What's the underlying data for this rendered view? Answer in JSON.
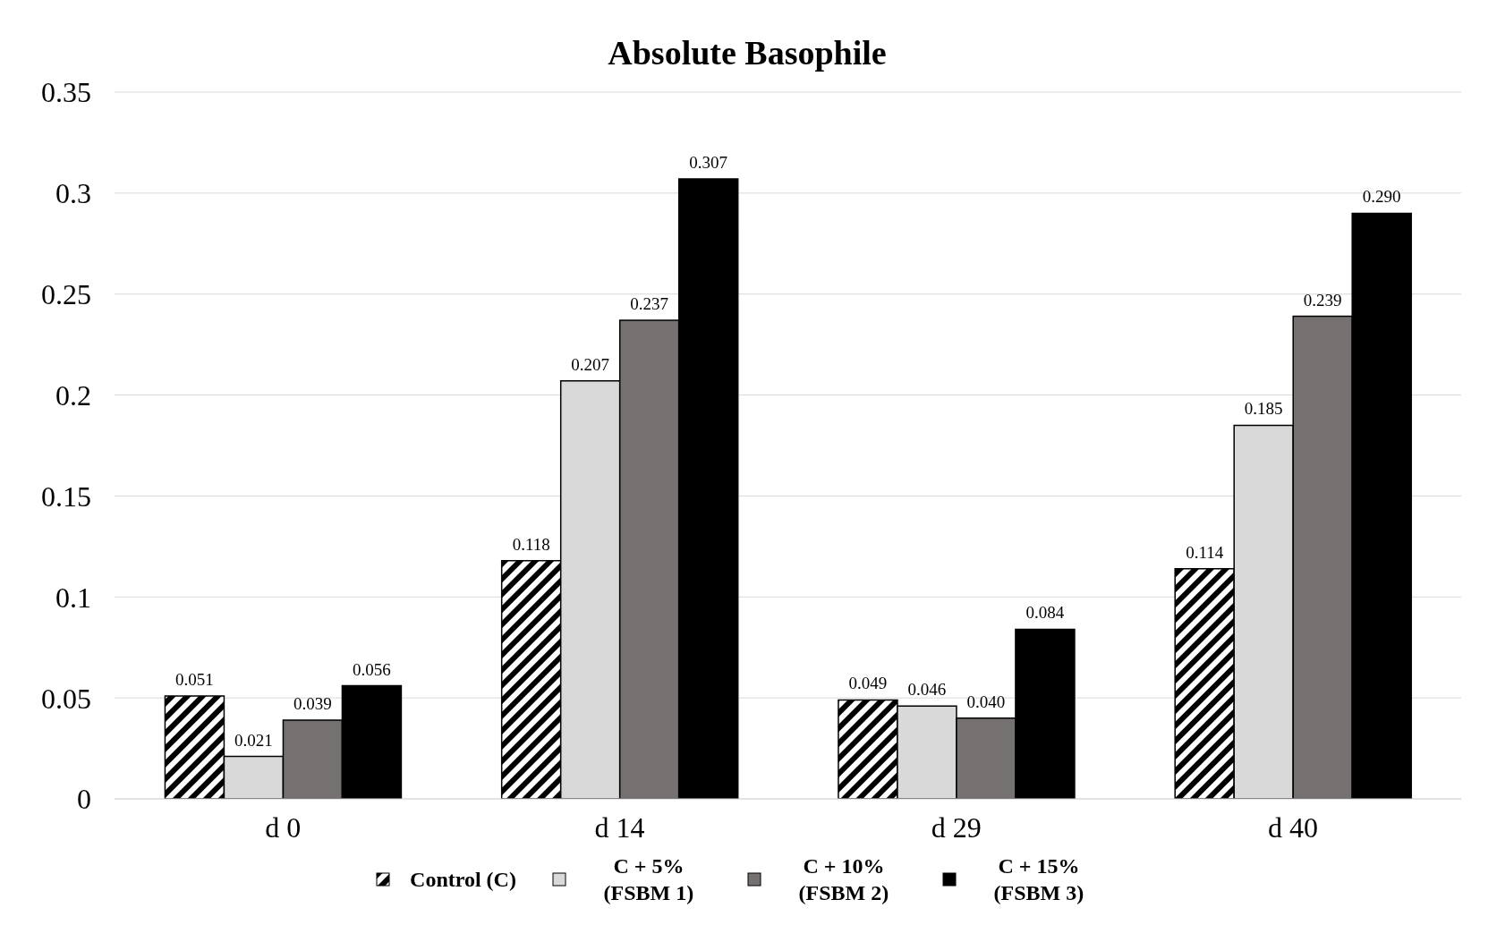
{
  "chart_data": {
    "type": "bar",
    "title": "Absolute Basophile",
    "categories": [
      "d 0",
      "d 14",
      "d 29",
      "d 40"
    ],
    "series": [
      {
        "name": "Control (C)",
        "color": "#000000",
        "values": [
          0.051,
          0.118,
          0.049,
          0.114
        ],
        "value_labels": [
          "0.051",
          "0.118",
          "0.049",
          "0.114"
        ]
      },
      {
        "name": "C + 5% (FSBM 1)",
        "color": "#d9d9d9",
        "values": [
          0.021,
          0.207,
          0.046,
          0.185
        ],
        "value_labels": [
          "0.021",
          "0.207",
          "0.046",
          "0.185"
        ]
      },
      {
        "name": "C + 10% (FSBM 2)",
        "color": "#767171",
        "values": [
          0.039,
          0.237,
          0.04,
          0.239
        ],
        "value_labels": [
          "0.039",
          "0.237",
          "0.040",
          "0.239"
        ]
      },
      {
        "name": "C + 15% (FSBM 3)",
        "color": "#000000",
        "values": [
          0.056,
          0.307,
          0.084,
          0.29
        ],
        "value_labels": [
          "0.056",
          "0.307",
          "0.084",
          "0.290"
        ]
      }
    ],
    "ylim": [
      0,
      0.35
    ],
    "yticks": [
      0,
      0.05,
      0.1,
      0.15,
      0.2,
      0.25,
      0.3,
      0.35
    ],
    "grid": "y",
    "legend": "bottom"
  }
}
